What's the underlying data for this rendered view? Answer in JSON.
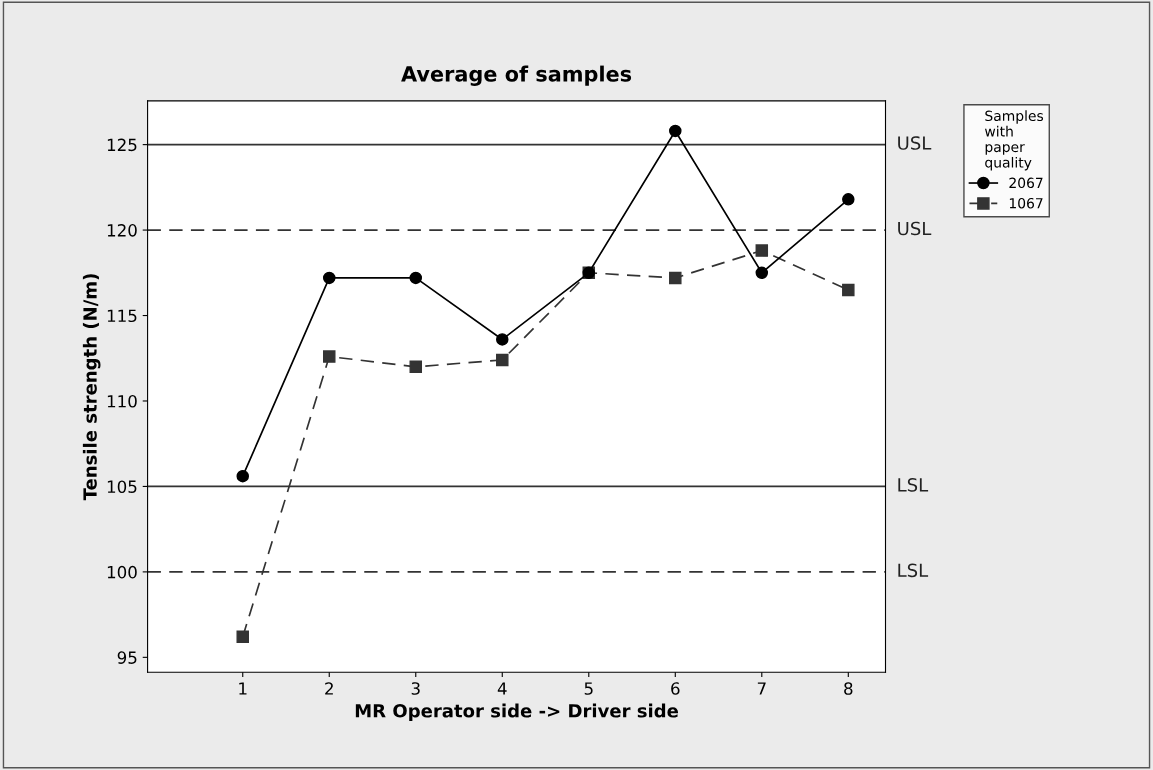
{
  "chart_data": {
    "type": "line",
    "title": "Average of samples",
    "xlabel": "MR Operator side -> Driver side",
    "ylabel": "Tensile strength (N/m)",
    "x": [
      1,
      2,
      3,
      4,
      5,
      6,
      7,
      8
    ],
    "xlim": [
      -0.1,
      8.43
    ],
    "xticks": [
      1,
      2,
      3,
      4,
      5,
      6,
      7,
      8
    ],
    "ylim": [
      94.13,
      127.56
    ],
    "yticks": [
      95,
      100,
      105,
      110,
      115,
      120,
      125
    ],
    "series": [
      {
        "name": "2067",
        "color": "#000000",
        "marker": "circle",
        "line_style": "solid",
        "values": [
          105.6,
          117.2,
          117.2,
          113.6,
          117.5,
          125.8,
          117.5,
          121.8
        ]
      },
      {
        "name": "1067",
        "color": "#333333",
        "marker": "square",
        "line_style": "dashed",
        "values": [
          96.2,
          112.6,
          112.0,
          112.4,
          117.5,
          117.2,
          118.8,
          116.5
        ]
      }
    ],
    "ref_lines": [
      {
        "axis": "y",
        "value": 125,
        "label": "USL",
        "color": "#333333",
        "line_style": "solid"
      },
      {
        "axis": "y",
        "value": 120,
        "label": "USL",
        "color": "#333333",
        "line_style": "dashed"
      },
      {
        "axis": "y",
        "value": 105,
        "label": "LSL",
        "color": "#333333",
        "line_style": "solid"
      },
      {
        "axis": "y",
        "value": 100,
        "label": "LSL",
        "color": "#333333",
        "line_style": "dashed"
      }
    ],
    "legend": "right",
    "legend_title": "Samples\nwith\npaper\nquality",
    "grid": false
  }
}
